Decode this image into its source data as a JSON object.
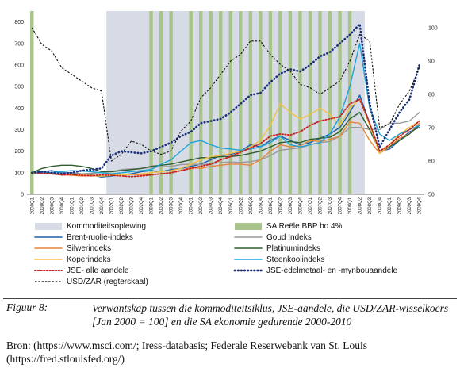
{
  "chart_data": {
    "type": "line",
    "x": [
      "2000Q1",
      "2000Q2",
      "2000Q3",
      "2000Q4",
      "2001Q1",
      "2001Q2",
      "2001Q3",
      "2001Q4",
      "2002Q1",
      "2002Q2",
      "2002Q3",
      "2002Q4",
      "2003Q1",
      "2003Q2",
      "2003Q3",
      "2003Q4",
      "2004Q1",
      "2004Q2",
      "2004Q3",
      "2004Q4",
      "2005Q1",
      "2005Q2",
      "2005Q3",
      "2005Q4",
      "2006Q1",
      "2006Q2",
      "2006Q3",
      "2006Q4",
      "2007Q1",
      "2007Q2",
      "2007Q3",
      "2007Q4",
      "2008Q1",
      "2008Q2",
      "2008Q3",
      "2008Q4",
      "2009Q1",
      "2009Q2",
      "2009Q3",
      "2009Q4"
    ],
    "y_left_ticks": [
      "0",
      "100",
      "200",
      "300",
      "400",
      "500",
      "600",
      "700",
      "800"
    ],
    "ylim_left": [
      0,
      850
    ],
    "y_right_ticks": [
      "50",
      "60",
      "70",
      "80",
      "90",
      "100"
    ],
    "ylim_right": [
      50,
      105
    ],
    "shading": {
      "name": "Kommoditeitsoplewing",
      "x_start": "2002Q1",
      "x_end": "2008Q2",
      "color": "#d6dbe6"
    },
    "recession_bars": {
      "name": "SA Reële BBP bo 4%",
      "color": "#a9c48a",
      "quarters": [
        "2000Q1",
        "2003Q1",
        "2003Q2",
        "2003Q3",
        "2004Q1",
        "2004Q2",
        "2004Q3",
        "2004Q4",
        "2005Q1",
        "2005Q2",
        "2005Q3",
        "2005Q4",
        "2006Q1",
        "2006Q2",
        "2006Q3",
        "2006Q4",
        "2007Q1",
        "2007Q2",
        "2007Q3",
        "2007Q4",
        "2008Q1"
      ]
    },
    "series": [
      {
        "name": "Brent-ruolie-indeks",
        "color": "#1f5fa8",
        "axis": "left",
        "style": "solid",
        "values": [
          100,
          105,
          110,
          100,
          100,
          95,
          90,
          80,
          85,
          90,
          95,
          105,
          110,
          105,
          115,
          120,
          130,
          140,
          160,
          180,
          185,
          200,
          230,
          220,
          250,
          270,
          250,
          230,
          240,
          260,
          280,
          310,
          380,
          460,
          330,
          200,
          210,
          250,
          290,
          310
        ]
      },
      {
        "name": "Goud Indeks",
        "color": "#9a9a9a",
        "axis": "left",
        "style": "solid",
        "values": [
          100,
          98,
          95,
          98,
          96,
          95,
          98,
          100,
          105,
          115,
          118,
          120,
          125,
          128,
          130,
          138,
          140,
          138,
          140,
          148,
          150,
          148,
          152,
          160,
          180,
          205,
          210,
          215,
          230,
          240,
          245,
          270,
          310,
          310,
          300,
          300,
          330,
          330,
          340,
          380
        ]
      },
      {
        "name": "Silwerindeks",
        "color": "#e8833a",
        "axis": "left",
        "style": "solid",
        "values": [
          100,
          98,
          95,
          90,
          88,
          85,
          86,
          85,
          87,
          90,
          92,
          90,
          92,
          95,
          100,
          110,
          125,
          120,
          130,
          135,
          140,
          140,
          135,
          160,
          200,
          230,
          220,
          225,
          250,
          245,
          255,
          270,
          335,
          330,
          250,
          190,
          220,
          260,
          280,
          330
        ]
      },
      {
        "name": "Platinumindeks",
        "color": "#2e5e2e",
        "axis": "left",
        "style": "solid",
        "values": [
          100,
          120,
          130,
          135,
          135,
          130,
          120,
          105,
          105,
          110,
          115,
          120,
          130,
          135,
          140,
          150,
          160,
          170,
          170,
          175,
          175,
          180,
          190,
          200,
          220,
          240,
          245,
          240,
          255,
          260,
          265,
          290,
          350,
          380,
          300,
          200,
          220,
          250,
          280,
          320
        ]
      },
      {
        "name": "Koperindeks",
        "color": "#f5c242",
        "axis": "left",
        "style": "solid",
        "values": [
          100,
          98,
          97,
          95,
          92,
          90,
          88,
          84,
          88,
          90,
          92,
          95,
          100,
          105,
          110,
          120,
          140,
          160,
          175,
          180,
          190,
          200,
          220,
          250,
          320,
          420,
          380,
          350,
          370,
          400,
          370,
          320,
          400,
          440,
          320,
          190,
          230,
          280,
          310,
          340
        ]
      },
      {
        "name": "Steenkoolindeks",
        "color": "#1fa3d9",
        "axis": "left",
        "style": "solid",
        "values": [
          100,
          100,
          102,
          105,
          110,
          108,
          105,
          100,
          95,
          100,
          105,
          110,
          115,
          140,
          160,
          200,
          240,
          250,
          230,
          215,
          210,
          205,
          210,
          220,
          240,
          270,
          230,
          220,
          230,
          240,
          280,
          360,
          500,
          700,
          400,
          280,
          250,
          280,
          300,
          320
        ]
      },
      {
        "name": "JSE- alle aandele",
        "color": "#c8201e",
        "axis": "left",
        "style": "dotted",
        "values": [
          100,
          98,
          95,
          90,
          92,
          88,
          86,
          90,
          88,
          85,
          82,
          85,
          90,
          95,
          100,
          110,
          120,
          130,
          140,
          160,
          175,
          195,
          215,
          235,
          270,
          280,
          275,
          290,
          320,
          340,
          350,
          360,
          420,
          440,
          330,
          200,
          230,
          270,
          300,
          340
        ]
      },
      {
        "name": "JSE-edelmetaal- en -mynbouaandele",
        "color": "#1c2f78",
        "axis": "left",
        "style": "bold-dotted",
        "values": [
          100,
          105,
          100,
          95,
          100,
          110,
          115,
          120,
          180,
          200,
          195,
          190,
          200,
          220,
          240,
          270,
          290,
          330,
          340,
          350,
          380,
          420,
          460,
          470,
          520,
          560,
          580,
          570,
          600,
          640,
          660,
          700,
          740,
          790,
          420,
          220,
          300,
          380,
          440,
          600
        ]
      },
      {
        "name": "USD/ZAR (regterskaal)",
        "color": "#111111",
        "axis": "right",
        "style": "dashed",
        "values": [
          100,
          95,
          93,
          88,
          86,
          84,
          82,
          81,
          60,
          62,
          66,
          65,
          63,
          62,
          63,
          69,
          72,
          79,
          82,
          86,
          90,
          92,
          96,
          96,
          92,
          89,
          87,
          83,
          82,
          80,
          82,
          84,
          90,
          98,
          96,
          70,
          71,
          77,
          81,
          88
        ]
      }
    ],
    "legend": [
      {
        "label": "Kommoditeitsoplewing",
        "kind": "band",
        "color": "#d6dbe6"
      },
      {
        "label": "SA Reële BBP bo 4%",
        "kind": "band",
        "color": "#a9c48a"
      },
      {
        "label": "Brent-ruolie-indeks",
        "kind": "line",
        "color": "#1f5fa8",
        "style": "solid"
      },
      {
        "label": "Goud Indeks",
        "kind": "line",
        "color": "#9a9a9a",
        "style": "solid"
      },
      {
        "label": "Silwerindeks",
        "kind": "line",
        "color": "#e8833a",
        "style": "solid"
      },
      {
        "label": "Platinumindeks",
        "kind": "line",
        "color": "#2e5e2e",
        "style": "solid"
      },
      {
        "label": "Koperindeks",
        "kind": "line",
        "color": "#f5c242",
        "style": "solid"
      },
      {
        "label": "Steenkoolindeks",
        "kind": "line",
        "color": "#1fa3d9",
        "style": "solid"
      },
      {
        "label": "JSE- alle aandele",
        "kind": "line",
        "color": "#c8201e",
        "style": "dotted"
      },
      {
        "label": "JSE-edelmetaal- en -mynbouaandele",
        "kind": "line",
        "color": "#1c2f78",
        "style": "bold-dotted"
      },
      {
        "label": "USD/ZAR (regterskaal)",
        "kind": "line",
        "color": "#111111",
        "style": "dashed"
      }
    ]
  },
  "caption": {
    "label": "Figuur 8:",
    "text": "Verwantskap tussen die kommoditeitsiklus, JSE-aandele, die USD/ZAR-wisselkoers [Jan 2000 = 100] en die SA ekonomie gedurende 2000-2010"
  },
  "source": "Bron: (https://www.msci.com/; Iress-databasis; Federale Reserwebank van St. Louis (https://fred.stlouisfed.org/)"
}
